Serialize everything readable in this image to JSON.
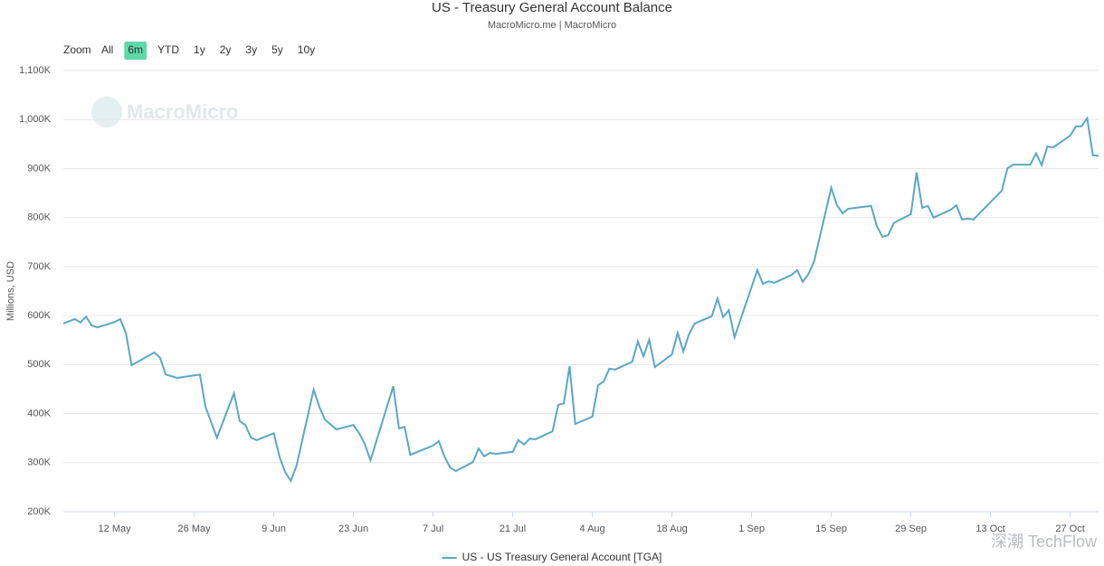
{
  "chart_data": {
    "type": "line",
    "title": "US - Treasury General Account Balance",
    "subtitle": "MacroMicro.me | MacroMicro",
    "y_label": "Millions, USD",
    "range_label": "Zoom",
    "range_buttons": [
      "All",
      "6m",
      "YTD",
      "1y",
      "2y",
      "3y",
      "5y",
      "10y"
    ],
    "selected_range": "6m",
    "watermarks": [
      "MacroMicro",
      "深潮 TechFlow"
    ],
    "grid": true,
    "ylim": [
      200,
      1100
    ],
    "yticks": [
      {
        "value": 200,
        "label": "200K"
      },
      {
        "value": 300,
        "label": "300K"
      },
      {
        "value": 400,
        "label": "400K"
      },
      {
        "value": 500,
        "label": "500K"
      },
      {
        "value": 600,
        "label": "600K"
      },
      {
        "value": 700,
        "label": "700K"
      },
      {
        "value": 800,
        "label": "800K"
      },
      {
        "value": 900,
        "label": "900K"
      },
      {
        "value": 1000,
        "label": "1,000K"
      },
      {
        "value": 1100,
        "label": "1,100K"
      }
    ],
    "xlim": [
      "05-03",
      "11-01"
    ],
    "xticks": [
      {
        "value": "05-12",
        "label": "12 May"
      },
      {
        "value": "05-26",
        "label": "26 May"
      },
      {
        "value": "06-09",
        "label": "9 Jun"
      },
      {
        "value": "06-23",
        "label": "23 Jun"
      },
      {
        "value": "07-07",
        "label": "7 Jul"
      },
      {
        "value": "07-21",
        "label": "21 Jul"
      },
      {
        "value": "08-04",
        "label": "4 Aug"
      },
      {
        "value": "08-18",
        "label": "18 Aug"
      },
      {
        "value": "09-01",
        "label": "1 Sep"
      },
      {
        "value": "09-15",
        "label": "15 Sep"
      },
      {
        "value": "09-29",
        "label": "29 Sep"
      },
      {
        "value": "10-13",
        "label": "13 Oct"
      },
      {
        "value": "10-27",
        "label": "27 Oct"
      }
    ],
    "x": [
      "05-03",
      "05-05",
      "05-06",
      "05-07",
      "05-08",
      "05-09",
      "05-12",
      "05-13",
      "05-14",
      "05-15",
      "05-19",
      "05-20",
      "05-21",
      "05-23",
      "05-27",
      "05-28",
      "05-30",
      "06-02",
      "06-03",
      "06-04",
      "06-05",
      "06-06",
      "06-09",
      "06-10",
      "06-11",
      "06-12",
      "06-13",
      "06-16",
      "06-17",
      "06-18",
      "06-20",
      "06-23",
      "06-24",
      "06-25",
      "06-26",
      "06-30",
      "07-01",
      "07-02",
      "07-03",
      "07-07",
      "07-08",
      "07-09",
      "07-10",
      "07-11",
      "07-14",
      "07-15",
      "07-16",
      "07-17",
      "07-18",
      "07-21",
      "07-22",
      "07-23",
      "07-24",
      "07-25",
      "07-28",
      "07-29",
      "07-30",
      "07-31",
      "08-01",
      "08-04",
      "08-05",
      "08-06",
      "08-07",
      "08-08",
      "08-11",
      "08-12",
      "08-13",
      "08-14",
      "08-15",
      "08-18",
      "08-19",
      "08-20",
      "08-21",
      "08-22",
      "08-25",
      "08-26",
      "08-27",
      "08-28",
      "08-29",
      "09-02",
      "09-03",
      "09-04",
      "09-05",
      "09-08",
      "09-09",
      "09-10",
      "09-11",
      "09-12",
      "09-15",
      "09-16",
      "09-17",
      "09-18",
      "09-22",
      "09-23",
      "09-24",
      "09-25",
      "09-26",
      "09-29",
      "09-30",
      "10-01",
      "10-02",
      "10-03",
      "10-06",
      "10-07",
      "10-08",
      "10-09",
      "10-10",
      "10-15",
      "10-16",
      "10-17",
      "10-20",
      "10-21",
      "10-22",
      "10-23",
      "10-24",
      "10-27",
      "10-28",
      "10-29",
      "10-30",
      "10-31",
      "11-01"
    ],
    "series": [
      {
        "name": "US - US Treasury General Account [TGA]",
        "color": "#5ba7c4",
        "values": [
          584,
          593,
          586,
          598,
          580,
          576,
          587,
          593,
          565,
          499,
          525,
          514,
          480,
          473,
          480,
          414,
          351,
          442,
          385,
          377,
          351,
          346,
          360,
          312,
          281,
          263,
          294,
          449,
          414,
          388,
          368,
          377,
          360,
          338,
          305,
          456,
          370,
          373,
          316,
          335,
          344,
          313,
          290,
          283,
          301,
          329,
          313,
          320,
          318,
          322,
          346,
          337,
          349,
          348,
          364,
          418,
          421,
          497,
          379,
          394,
          458,
          466,
          492,
          490,
          506,
          547,
          517,
          551,
          495,
          521,
          565,
          527,
          562,
          584,
          599,
          635,
          597,
          611,
          556,
          693,
          665,
          670,
          667,
          683,
          693,
          669,
          685,
          711,
          861,
          825,
          809,
          818,
          824,
          783,
          761,
          764,
          789,
          807,
          892,
          820,
          824,
          800,
          816,
          825,
          796,
          798,
          796,
          855,
          901,
          908,
          908,
          931,
          907,
          945,
          943,
          967,
          986,
          986,
          1003,
          927,
          926
        ]
      }
    ]
  }
}
